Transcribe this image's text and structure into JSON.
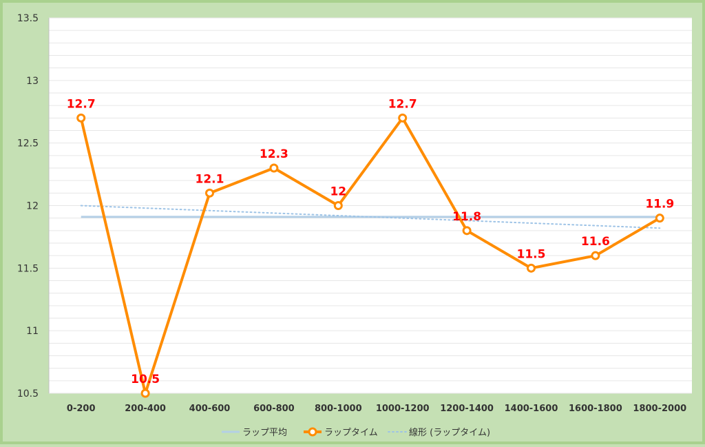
{
  "chart_data": {
    "type": "line",
    "title": "",
    "xlabel": "",
    "ylabel": "",
    "categories": [
      "0-200",
      "200-400",
      "400-600",
      "600-800",
      "800-1000",
      "1000-1200",
      "1200-1400",
      "1400-1600",
      "1600-1800",
      "1800-2000"
    ],
    "ylim": [
      10.5,
      13.5
    ],
    "yticks": [
      10.5,
      11,
      11.5,
      12,
      12.5,
      13,
      13.5
    ],
    "grid": true,
    "legend_position": "bottom",
    "series": [
      {
        "name": "ラップ平均",
        "kind": "average",
        "values": [
          11.91,
          11.91,
          11.91,
          11.91,
          11.91,
          11.91,
          11.91,
          11.91,
          11.91,
          11.91
        ],
        "color": "#b4cfe6"
      },
      {
        "name": "ラップタイム",
        "kind": "lap",
        "values": [
          12.7,
          10.5,
          12.1,
          12.3,
          12,
          12.7,
          11.8,
          11.5,
          11.6,
          11.9
        ],
        "data_labels": [
          "12.7",
          "10.5",
          "12.1",
          "12.3",
          "12",
          "12.7",
          "11.8",
          "11.5",
          "11.6",
          "11.9"
        ],
        "color": "#ff8c00",
        "label_color": "#ff0000"
      },
      {
        "name": "線形 (ラップタイム)",
        "kind": "trend",
        "values": [
          12.0,
          11.98,
          11.96,
          11.94,
          11.92,
          11.9,
          11.88,
          11.86,
          11.84,
          11.82
        ],
        "color": "#9dc3e6"
      }
    ]
  },
  "colors": {
    "frame_bg": "#c5e0b4",
    "plot_bg": "#ffffff",
    "grid": "#e6e6e6"
  }
}
